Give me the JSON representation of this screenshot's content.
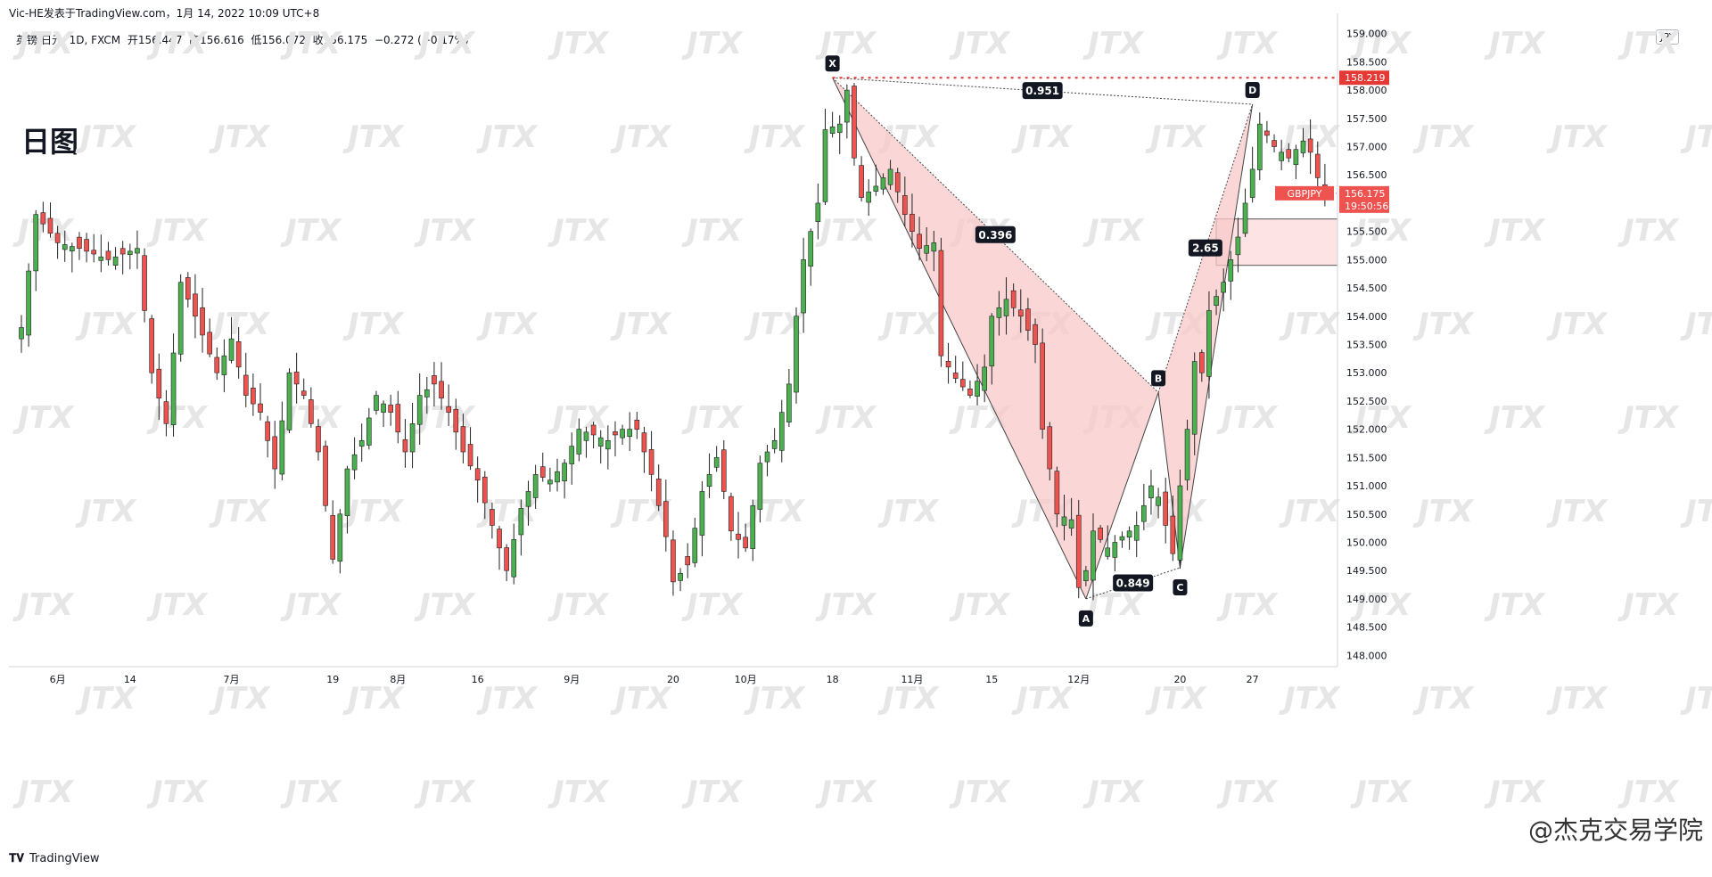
{
  "header": {
    "publisher": "Vic-HE发表于TradingView.com，1月 14, 2022 10:09 UTC+8"
  },
  "legend": {
    "symbol": "英镑/日元, 1D, FXCM",
    "open_label": "开",
    "open": "156.447",
    "high_label": "高",
    "high": "156.616",
    "low_label": "低",
    "low": "156.072",
    "close_label": "收",
    "close": "156.175",
    "change": "−0.272 (−0.17%)"
  },
  "timeframe_label": "日图",
  "unit": "JPY",
  "footer": {
    "brand": "TradingView"
  },
  "corner_watermark": "@杰克交易学院",
  "watermark_text": "JTX",
  "colors": {
    "up": "#26a69a",
    "up_fill": "#4caf50",
    "down": "#ef5350",
    "pattern_fill": "#f8c8c8",
    "zone_fill": "#fde3e3",
    "dotted": "#e53935"
  },
  "chart_data": {
    "type": "candlestick",
    "symbol": "GBPJPY",
    "y_axis": {
      "min": 147.8,
      "max": 159.2,
      "ticks": [
        148.0,
        148.5,
        149.0,
        149.5,
        150.0,
        150.5,
        151.0,
        151.5,
        152.0,
        152.5,
        153.0,
        153.5,
        154.0,
        154.5,
        155.0,
        155.5,
        156.0,
        156.5,
        157.0,
        157.5,
        158.0,
        158.5,
        159.0
      ]
    },
    "tick_labels": [
      "148.000",
      "148.500",
      "149.000",
      "149.500",
      "150.000",
      "150.500",
      "151.000",
      "151.500",
      "152.000",
      "152.500",
      "153.000",
      "153.500",
      "154.000",
      "154.500",
      "155.000",
      "155.500",
      "156.000",
      "156.500",
      "157.000",
      "157.500",
      "158.000",
      "158.500",
      "159.000"
    ],
    "x_labels": [
      {
        "i": 5,
        "label": "6月"
      },
      {
        "i": 15,
        "label": "14"
      },
      {
        "i": 29,
        "label": "7月"
      },
      {
        "i": 43,
        "label": "19"
      },
      {
        "i": 52,
        "label": "8月"
      },
      {
        "i": 63,
        "label": "16"
      },
      {
        "i": 76,
        "label": "9月"
      },
      {
        "i": 90,
        "label": "20"
      },
      {
        "i": 100,
        "label": "10月"
      },
      {
        "i": 112,
        "label": "18"
      },
      {
        "i": 123,
        "label": "11月"
      },
      {
        "i": 134,
        "label": "15"
      },
      {
        "i": 146,
        "label": "12月"
      },
      {
        "i": 160,
        "label": "20"
      },
      {
        "i": 170,
        "label": "27"
      }
    ],
    "waypoints": [
      [
        0,
        153.8
      ],
      [
        2,
        155.8
      ],
      [
        5,
        155.3
      ],
      [
        8,
        155.2
      ],
      [
        12,
        155.0
      ],
      [
        16,
        155.2
      ],
      [
        18,
        153.0
      ],
      [
        20,
        152.1
      ],
      [
        22,
        154.6
      ],
      [
        24,
        154.0
      ],
      [
        27,
        153.0
      ],
      [
        29,
        153.6
      ],
      [
        31,
        152.6
      ],
      [
        33,
        152.3
      ],
      [
        35,
        151.3
      ],
      [
        37,
        153.0
      ],
      [
        39,
        152.6
      ],
      [
        41,
        151.6
      ],
      [
        43,
        149.7
      ],
      [
        45,
        151.3
      ],
      [
        47,
        151.8
      ],
      [
        49,
        152.6
      ],
      [
        51,
        152.3
      ],
      [
        53,
        151.6
      ],
      [
        55,
        152.6
      ],
      [
        57,
        152.8
      ],
      [
        59,
        152.3
      ],
      [
        61,
        151.6
      ],
      [
        63,
        151.1
      ],
      [
        65,
        150.3
      ],
      [
        67,
        149.5
      ],
      [
        69,
        150.6
      ],
      [
        71,
        151.2
      ],
      [
        73,
        151.1
      ],
      [
        75,
        151.4
      ],
      [
        77,
        152.0
      ],
      [
        79,
        151.9
      ],
      [
        81,
        151.8
      ],
      [
        83,
        152.0
      ],
      [
        85,
        152.0
      ],
      [
        87,
        151.2
      ],
      [
        89,
        150.1
      ],
      [
        90,
        149.3
      ],
      [
        92,
        149.6
      ],
      [
        94,
        150.9
      ],
      [
        96,
        151.5
      ],
      [
        97,
        150.9
      ],
      [
        98,
        150.2
      ],
      [
        100,
        149.9
      ],
      [
        102,
        151.4
      ],
      [
        104,
        151.8
      ],
      [
        106,
        152.8
      ],
      [
        107,
        154.0
      ],
      [
        108,
        155.0
      ],
      [
        110,
        156.0
      ],
      [
        111,
        157.3
      ],
      [
        113,
        157.4
      ],
      [
        114,
        158.0
      ],
      [
        115,
        156.8
      ],
      [
        116,
        156.1
      ],
      [
        118,
        156.3
      ],
      [
        120,
        156.6
      ],
      [
        122,
        155.8
      ],
      [
        124,
        155.2
      ],
      [
        126,
        155.3
      ],
      [
        127,
        153.3
      ],
      [
        129,
        152.9
      ],
      [
        131,
        152.6
      ],
      [
        133,
        153.1
      ],
      [
        134,
        154.0
      ],
      [
        136,
        154.3
      ],
      [
        138,
        154.0
      ],
      [
        140,
        153.5
      ],
      [
        141,
        152.0
      ],
      [
        142,
        151.3
      ],
      [
        143,
        150.5
      ],
      [
        145,
        150.4
      ],
      [
        146,
        149.2
      ],
      [
        147,
        149.5
      ],
      [
        148,
        150.2
      ],
      [
        150,
        149.9
      ],
      [
        152,
        150.1
      ],
      [
        154,
        150.3
      ],
      [
        156,
        151.0
      ],
      [
        157,
        150.8
      ],
      [
        158,
        150.3
      ],
      [
        159,
        149.8
      ],
      [
        160,
        151.0
      ],
      [
        161,
        152.0
      ],
      [
        162,
        153.2
      ],
      [
        163,
        153.0
      ],
      [
        164,
        154.1
      ],
      [
        166,
        154.6
      ],
      [
        168,
        155.4
      ],
      [
        169,
        156.0
      ],
      [
        170,
        156.6
      ],
      [
        171,
        157.4
      ],
      [
        173,
        157.0
      ],
      [
        175,
        156.8
      ],
      [
        177,
        157.1
      ],
      [
        178,
        156.9
      ],
      [
        179,
        156.45
      ],
      [
        180,
        156.18
      ]
    ],
    "harmonic_pattern": {
      "points": [
        {
          "label": "X",
          "i": 112,
          "price": 158.219
        },
        {
          "label": "A",
          "i": 147,
          "price": 149.0
        },
        {
          "label": "B",
          "i": 157,
          "price": 152.65
        },
        {
          "label": "C",
          "i": 160,
          "price": 149.55
        },
        {
          "label": "D",
          "i": 170,
          "price": 157.75
        }
      ],
      "ratios": [
        {
          "label": "0.951",
          "between": [
            "X",
            "D"
          ]
        },
        {
          "label": "0.396",
          "between": [
            "X",
            "B"
          ]
        },
        {
          "label": "0.849",
          "between": [
            "A",
            "C"
          ]
        },
        {
          "label": "2.65",
          "between": [
            "B",
            "D"
          ]
        }
      ]
    },
    "resistance_level": 158.219,
    "resistance_label": "158.219",
    "zone": {
      "top": 155.72,
      "bottom": 154.9
    },
    "last_price": {
      "symbol_tag": "GBPJPY",
      "price": "156.175",
      "countdown": "19:50:56",
      "value": 156.175
    }
  }
}
